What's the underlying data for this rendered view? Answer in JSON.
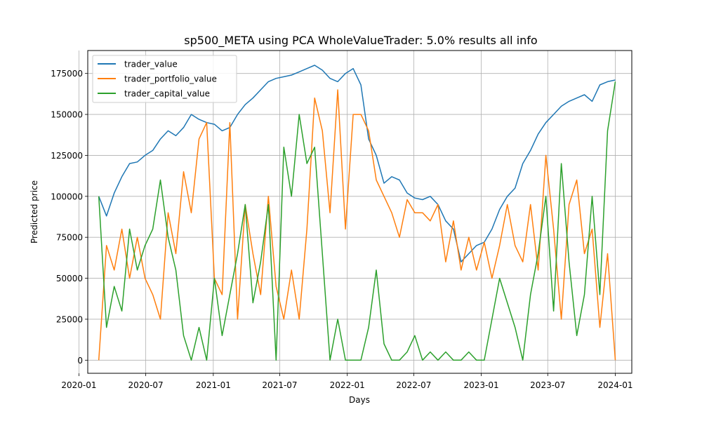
{
  "chart_data": {
    "type": "line",
    "title": "sp500_META using PCA WholeValueTrader: 5.0% results all info",
    "xlabel": "Days",
    "ylabel": "Predicted price",
    "x_axis_type": "date",
    "xlim": [
      "2020-01-25",
      "2024-02-15"
    ],
    "ylim": [
      -8000,
      189000
    ],
    "x_ticks": [
      "2020-01",
      "2020-07",
      "2021-01",
      "2021-07",
      "2022-01",
      "2022-07",
      "2023-01",
      "2023-07",
      "2024-01"
    ],
    "y_ticks": [
      0,
      25000,
      50000,
      75000,
      100000,
      125000,
      150000,
      175000
    ],
    "grid": true,
    "legend_position": "top-left",
    "x": [
      "2020-02-24",
      "2020-03-16",
      "2020-04-06",
      "2020-04-27",
      "2020-05-18",
      "2020-06-08",
      "2020-06-29",
      "2020-07-20",
      "2020-08-10",
      "2020-08-31",
      "2020-09-21",
      "2020-10-12",
      "2020-11-02",
      "2020-11-23",
      "2020-12-14",
      "2021-01-04",
      "2021-01-25",
      "2021-02-15",
      "2021-03-08",
      "2021-03-29",
      "2021-04-19",
      "2021-05-10",
      "2021-05-31",
      "2021-06-21",
      "2021-07-12",
      "2021-08-02",
      "2021-08-23",
      "2021-09-13",
      "2021-10-04",
      "2021-10-25",
      "2021-11-15",
      "2021-12-06",
      "2021-12-27",
      "2022-01-17",
      "2022-02-07",
      "2022-02-28",
      "2022-03-21",
      "2022-04-11",
      "2022-05-02",
      "2022-05-23",
      "2022-06-13",
      "2022-07-04",
      "2022-07-25",
      "2022-08-15",
      "2022-09-05",
      "2022-09-26",
      "2022-10-17",
      "2022-11-07",
      "2022-11-28",
      "2022-12-19",
      "2023-01-09",
      "2023-01-30",
      "2023-02-20",
      "2023-03-13",
      "2023-04-03",
      "2023-04-24",
      "2023-05-15",
      "2023-06-05",
      "2023-06-26",
      "2023-07-17",
      "2023-08-07",
      "2023-08-28",
      "2023-09-18",
      "2023-10-09",
      "2023-10-30",
      "2023-11-20",
      "2023-12-11",
      "2024-01-01"
    ],
    "series": [
      {
        "name": "trader_value",
        "color": "#1f77b4",
        "values": [
          100000,
          88000,
          102000,
          112000,
          120000,
          121000,
          125000,
          128000,
          135000,
          140000,
          137000,
          142000,
          150000,
          147000,
          145000,
          144000,
          140000,
          142000,
          150000,
          156000,
          160000,
          165000,
          170000,
          172000,
          173000,
          174000,
          176000,
          178000,
          180000,
          177000,
          172000,
          170000,
          175000,
          178000,
          168000,
          135000,
          125000,
          108000,
          112000,
          110000,
          102000,
          99000,
          98000,
          100000,
          95000,
          85000,
          80000,
          60000,
          65000,
          70000,
          72000,
          80000,
          92000,
          100000,
          105000,
          120000,
          128000,
          138000,
          145000,
          150000,
          155000,
          158000,
          160000,
          162000,
          158000,
          168000,
          170000,
          171000
        ]
      },
      {
        "name": "trader_portfolio_value",
        "color": "#ff7f0e",
        "values": [
          0,
          70000,
          55000,
          80000,
          50000,
          75000,
          50000,
          40000,
          25000,
          90000,
          65000,
          115000,
          90000,
          135000,
          145000,
          50000,
          40000,
          145000,
          25000,
          95000,
          65000,
          40000,
          100000,
          45000,
          25000,
          55000,
          25000,
          80000,
          160000,
          140000,
          90000,
          165000,
          80000,
          150000,
          150000,
          140000,
          110000,
          100000,
          90000,
          75000,
          98000,
          90000,
          90000,
          85000,
          95000,
          60000,
          85000,
          55000,
          75000,
          55000,
          72000,
          50000,
          70000,
          95000,
          70000,
          60000,
          95000,
          55000,
          125000,
          80000,
          25000,
          95000,
          110000,
          65000,
          80000,
          20000,
          65000,
          0
        ]
      },
      {
        "name": "trader_capital_value",
        "color": "#2ca02c",
        "values": [
          100000,
          20000,
          45000,
          30000,
          80000,
          55000,
          70000,
          80000,
          110000,
          75000,
          55000,
          15000,
          0,
          20000,
          0,
          50000,
          15000,
          40000,
          65000,
          95000,
          35000,
          60000,
          95000,
          0,
          130000,
          100000,
          150000,
          120000,
          130000,
          65000,
          0,
          25000,
          0,
          0,
          0,
          20000,
          55000,
          10000,
          0,
          0,
          5000,
          15000,
          0,
          5000,
          0,
          5000,
          0,
          0,
          5000,
          0,
          0,
          25000,
          50000,
          35000,
          20000,
          0,
          40000,
          65000,
          100000,
          30000,
          120000,
          60000,
          15000,
          40000,
          100000,
          40000,
          140000,
          170000
        ]
      }
    ]
  }
}
